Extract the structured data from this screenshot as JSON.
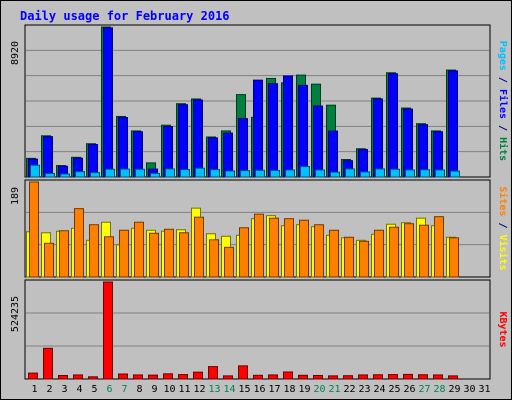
{
  "chart_data": [
    {
      "type": "bar",
      "title": "Daily usage for February 2016",
      "categories": [
        "1",
        "2",
        "3",
        "4",
        "5",
        "6",
        "7",
        "8",
        "9",
        "10",
        "11",
        "12",
        "13",
        "14",
        "15",
        "16",
        "17",
        "18",
        "19",
        "20",
        "21",
        "22",
        "23",
        "24",
        "25",
        "26",
        "27",
        "28",
        "29",
        "30",
        "31"
      ],
      "weekend_days": [
        "6",
        "7",
        "13",
        "14",
        "20",
        "21",
        "27",
        "28"
      ],
      "ylabel_parts": [
        {
          "text": "Pages",
          "color": "#00c0ff"
        },
        {
          "text": " / ",
          "color": "#000080"
        },
        {
          "text": "Files",
          "color": "#0000ff"
        },
        {
          "text": " / ",
          "color": "#000080"
        },
        {
          "text": "Hits",
          "color": "#008040"
        }
      ],
      "ymax_label": "8920",
      "ylim": [
        0,
        8920
      ],
      "series": [
        {
          "name": "Hits",
          "color": "#008040",
          "values": [
            1110,
            2450,
            680,
            1170,
            1980,
            8920,
            3600,
            2740,
            840,
            3080,
            4360,
            4640,
            2380,
            2740,
            4900,
            3550,
            5860,
            5600,
            6060,
            5520,
            4270,
            1040,
            1680,
            4690,
            6200,
            4100,
            3170,
            2740,
            6360,
            0,
            0
          ]
        },
        {
          "name": "Files",
          "color": "#0000ff",
          "values": [
            1060,
            2400,
            640,
            1120,
            1930,
            8870,
            3540,
            2690,
            470,
            3000,
            4300,
            4580,
            2330,
            2610,
            3470,
            5760,
            5550,
            6010,
            5450,
            4220,
            2730,
            970,
            1630,
            4640,
            6140,
            4040,
            3110,
            2690,
            6310,
            0,
            0
          ]
        },
        {
          "name": "Pages",
          "color": "#00c0ff",
          "values": [
            700,
            210,
            180,
            320,
            260,
            460,
            470,
            460,
            210,
            480,
            440,
            520,
            440,
            360,
            380,
            400,
            390,
            420,
            620,
            420,
            290,
            480,
            300,
            480,
            460,
            420,
            430,
            420,
            350,
            0,
            0
          ]
        }
      ]
    },
    {
      "type": "bar",
      "categories": [
        "1",
        "2",
        "3",
        "4",
        "5",
        "6",
        "7",
        "8",
        "9",
        "10",
        "11",
        "12",
        "13",
        "14",
        "15",
        "16",
        "17",
        "18",
        "19",
        "20",
        "21",
        "22",
        "23",
        "24",
        "25",
        "26",
        "27",
        "28",
        "29",
        "30",
        "31"
      ],
      "ylabel_parts": [
        {
          "text": "Sites",
          "color": "#ff8000"
        },
        {
          "text": " / ",
          "color": "#000080"
        },
        {
          "text": "Visits",
          "color": "#ffff00"
        }
      ],
      "ymax_label": "189",
      "ylim": [
        0,
        189
      ],
      "series": [
        {
          "name": "Visits",
          "color": "#ffff00",
          "values": [
            90,
            88,
            91,
            97,
            73,
            109,
            64,
            97,
            93,
            91,
            94,
            137,
            86,
            81,
            83,
            116,
            122,
            102,
            104,
            100,
            83,
            78,
            73,
            85,
            105,
            108,
            117,
            102,
            79,
            0,
            0
          ]
        },
        {
          "name": "Sites",
          "color": "#ff8000",
          "values": [
            189,
            67,
            92,
            136,
            104,
            80,
            93,
            109,
            87,
            95,
            88,
            119,
            74,
            59,
            98,
            125,
            117,
            116,
            113,
            104,
            93,
            79,
            71,
            93,
            99,
            106,
            103,
            120,
            78,
            0,
            0
          ]
        }
      ]
    },
    {
      "type": "bar",
      "categories": [
        "1",
        "2",
        "3",
        "4",
        "5",
        "6",
        "7",
        "8",
        "9",
        "10",
        "11",
        "12",
        "13",
        "14",
        "15",
        "16",
        "17",
        "18",
        "19",
        "20",
        "21",
        "22",
        "23",
        "24",
        "25",
        "26",
        "27",
        "28",
        "29",
        "30",
        "31"
      ],
      "ylabel_parts": [
        {
          "text": "KBytes",
          "color": "#ff0000"
        }
      ],
      "ymax_label": "524235",
      "ylim": [
        0,
        524235
      ],
      "series": [
        {
          "name": "KBytes",
          "color": "#ff0000",
          "values": [
            32000,
            166000,
            19000,
            22000,
            12000,
            524235,
            27000,
            22000,
            21000,
            28000,
            24000,
            37000,
            67000,
            17000,
            71000,
            20000,
            22000,
            38000,
            20000,
            19000,
            17000,
            18000,
            22000,
            23000,
            24000,
            25000,
            23000,
            22000,
            17000,
            0,
            0
          ]
        }
      ]
    }
  ]
}
